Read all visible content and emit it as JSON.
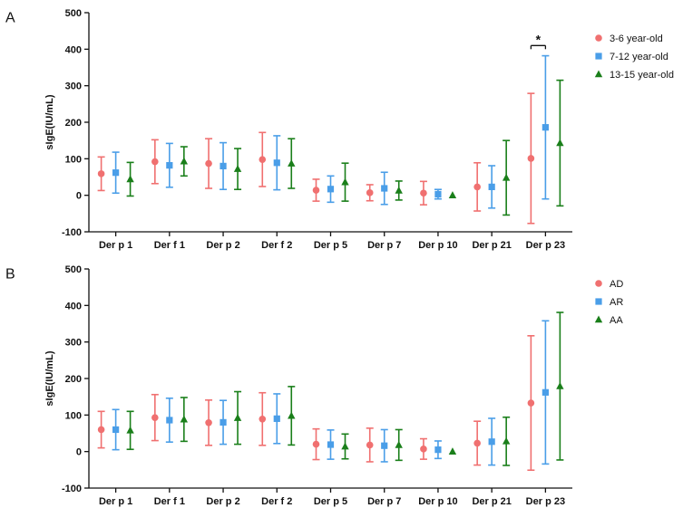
{
  "chart_data": [
    {
      "type": "scatter",
      "panel_label": "A",
      "title": "",
      "xlabel": "",
      "ylabel": "sIgE(IU/mL)",
      "ylim": [
        -100,
        500
      ],
      "yticks": [
        -100,
        0,
        100,
        200,
        300,
        400,
        500
      ],
      "categories": [
        "Der p 1",
        "Der f 1",
        "Der p 2",
        "Der f 2",
        "Der p 5",
        "Der p 7",
        "Der p 10",
        "Der p 21",
        "Der p 23"
      ],
      "legend_position": "top-right",
      "series": [
        {
          "name": "3-6 year-old",
          "color": "#f07070",
          "marker": "circle",
          "values": [
            59,
            92,
            87,
            98,
            14,
            7,
            6,
            23,
            101
          ],
          "error": [
            46,
            60,
            68,
            74,
            30,
            22,
            32,
            66,
            178
          ]
        },
        {
          "name": "7-12 year-old",
          "color": "#4a9ee8",
          "marker": "square",
          "values": [
            62,
            82,
            80,
            89,
            17,
            19,
            3,
            23,
            186
          ],
          "error": [
            56,
            60,
            64,
            74,
            36,
            44,
            13,
            58,
            196
          ]
        },
        {
          "name": "13-15 year-old",
          "color": "#1a7f1a",
          "marker": "triangle",
          "values": [
            44,
            93,
            72,
            87,
            36,
            13,
            0,
            48,
            143
          ],
          "error": [
            46,
            40,
            56,
            68,
            52,
            26,
            0,
            102,
            172
          ]
        }
      ],
      "annotations": [
        {
          "text": "*",
          "between": "Der p 23: 3-6 year-old vs 7-12 year-old"
        }
      ]
    },
    {
      "type": "scatter",
      "panel_label": "B",
      "title": "",
      "xlabel": "",
      "ylabel": "sIgE(IU/mL)",
      "ylim": [
        -100,
        500
      ],
      "yticks": [
        -100,
        0,
        100,
        200,
        300,
        400,
        500
      ],
      "categories": [
        "Der p 1",
        "Der f 1",
        "Der p 2",
        "Der f 2",
        "Der p 5",
        "Der p 7",
        "Der p 10",
        "Der p 21",
        "Der p 23"
      ],
      "legend_position": "top-right",
      "series": [
        {
          "name": "AD",
          "color": "#f07070",
          "marker": "circle",
          "values": [
            60,
            93,
            79,
            89,
            20,
            18,
            7,
            23,
            133
          ],
          "error": [
            50,
            63,
            62,
            72,
            42,
            46,
            28,
            60,
            184
          ]
        },
        {
          "name": "AR",
          "color": "#4a9ee8",
          "marker": "square",
          "values": [
            60,
            86,
            80,
            90,
            19,
            16,
            5,
            27,
            162
          ],
          "error": [
            55,
            60,
            60,
            68,
            40,
            44,
            24,
            64,
            196
          ]
        },
        {
          "name": "AA",
          "color": "#1a7f1a",
          "marker": "triangle",
          "values": [
            58,
            88,
            92,
            98,
            14,
            18,
            0,
            28,
            179
          ],
          "error": [
            52,
            60,
            72,
            80,
            34,
            42,
            0,
            66,
            202
          ]
        }
      ],
      "annotations": []
    }
  ]
}
